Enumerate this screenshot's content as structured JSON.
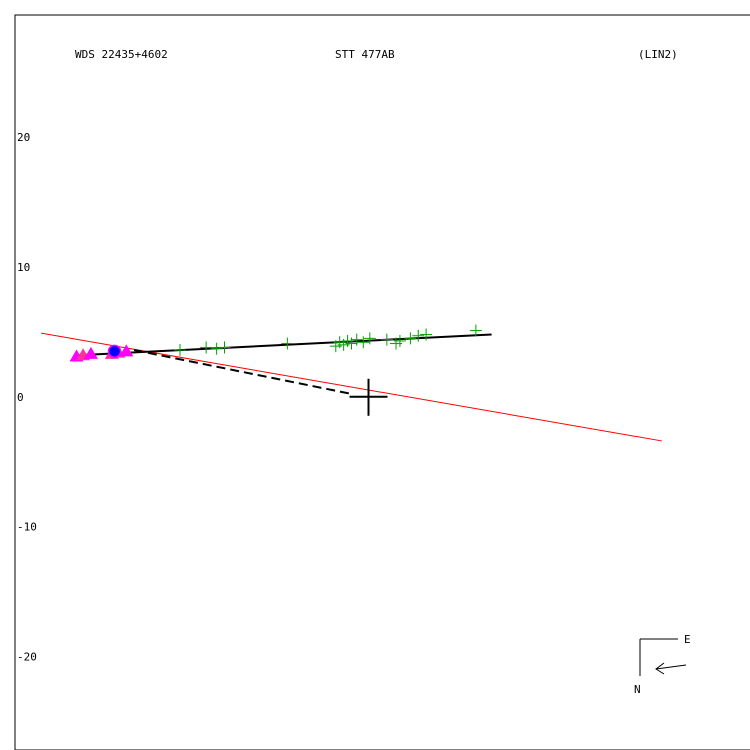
{
  "header": {
    "left": "WDS 22435+4602",
    "center": "STT 477AB",
    "right": "(LIN2)"
  },
  "compass": {
    "east_label": "E",
    "north_label": "N"
  },
  "chart_data": {
    "type": "scatter",
    "title": "",
    "xlabel": "",
    "ylabel": "",
    "xlim": [
      -29.9,
      27.0
    ],
    "ylim": [
      -27.2,
      29.4
    ],
    "x_reversed": true,
    "yticks": [
      {
        "value": 20,
        "label": "20"
      },
      {
        "value": 10,
        "label": "10"
      },
      {
        "value": 0,
        "label": "0"
      },
      {
        "value": -10,
        "label": "-10"
      },
      {
        "value": -20,
        "label": "-20"
      }
    ],
    "colors": {
      "fit_line": "#000000",
      "reference_line": "#ff0000",
      "residual_dashes": "#000000",
      "green_points": "#00a000",
      "triangle_points": "#ff00ff",
      "triangle_points_alt": "#ff3399",
      "circle_points": "#0000ff"
    },
    "primary_marker": {
      "x": 0,
      "y": 0
    },
    "linear_fit": [
      {
        "x": 22.2,
        "y": 3.2
      },
      {
        "x": -9.4,
        "y": 4.8
      }
    ],
    "reference_line": [
      {
        "x": 25.0,
        "y": 4.9
      },
      {
        "x": -22.4,
        "y": -3.4
      }
    ],
    "dashed_segment": [
      {
        "x": 17.9,
        "y": 3.6
      },
      {
        "x": 1.2,
        "y": 0.2
      }
    ],
    "series": [
      {
        "marker": "plus",
        "points": [
          {
            "x": 14.4,
            "y": 3.6
          },
          {
            "x": 12.4,
            "y": 3.8
          },
          {
            "x": 11.6,
            "y": 3.7
          },
          {
            "x": 11.0,
            "y": 3.8
          },
          {
            "x": 6.2,
            "y": 4.1
          },
          {
            "x": 2.5,
            "y": 3.9
          },
          {
            "x": 2.2,
            "y": 4.2
          },
          {
            "x": 1.9,
            "y": 4.0
          },
          {
            "x": 1.6,
            "y": 4.3
          },
          {
            "x": 1.3,
            "y": 4.1
          },
          {
            "x": 0.9,
            "y": 4.4
          },
          {
            "x": 0.4,
            "y": 4.2
          },
          {
            "x": -0.1,
            "y": 4.5
          },
          {
            "x": -1.4,
            "y": 4.4
          },
          {
            "x": -2.1,
            "y": 4.1
          },
          {
            "x": -2.4,
            "y": 4.3
          },
          {
            "x": -3.2,
            "y": 4.5
          },
          {
            "x": -3.8,
            "y": 4.7
          },
          {
            "x": -4.4,
            "y": 4.8
          },
          {
            "x": -8.2,
            "y": 5.1
          }
        ]
      },
      {
        "marker": "triangle",
        "points": [
          {
            "x": 22.3,
            "y": 3.1
          },
          {
            "x": 21.8,
            "y": 3.2
          },
          {
            "x": 21.2,
            "y": 3.3
          },
          {
            "x": 19.1,
            "y": 3.4
          },
          {
            "x": 18.5,
            "y": 3.5
          },
          {
            "x": 19.6,
            "y": 3.3
          }
        ]
      },
      {
        "marker": "circle",
        "points": [
          {
            "x": 19.4,
            "y": 3.5
          }
        ]
      }
    ]
  }
}
